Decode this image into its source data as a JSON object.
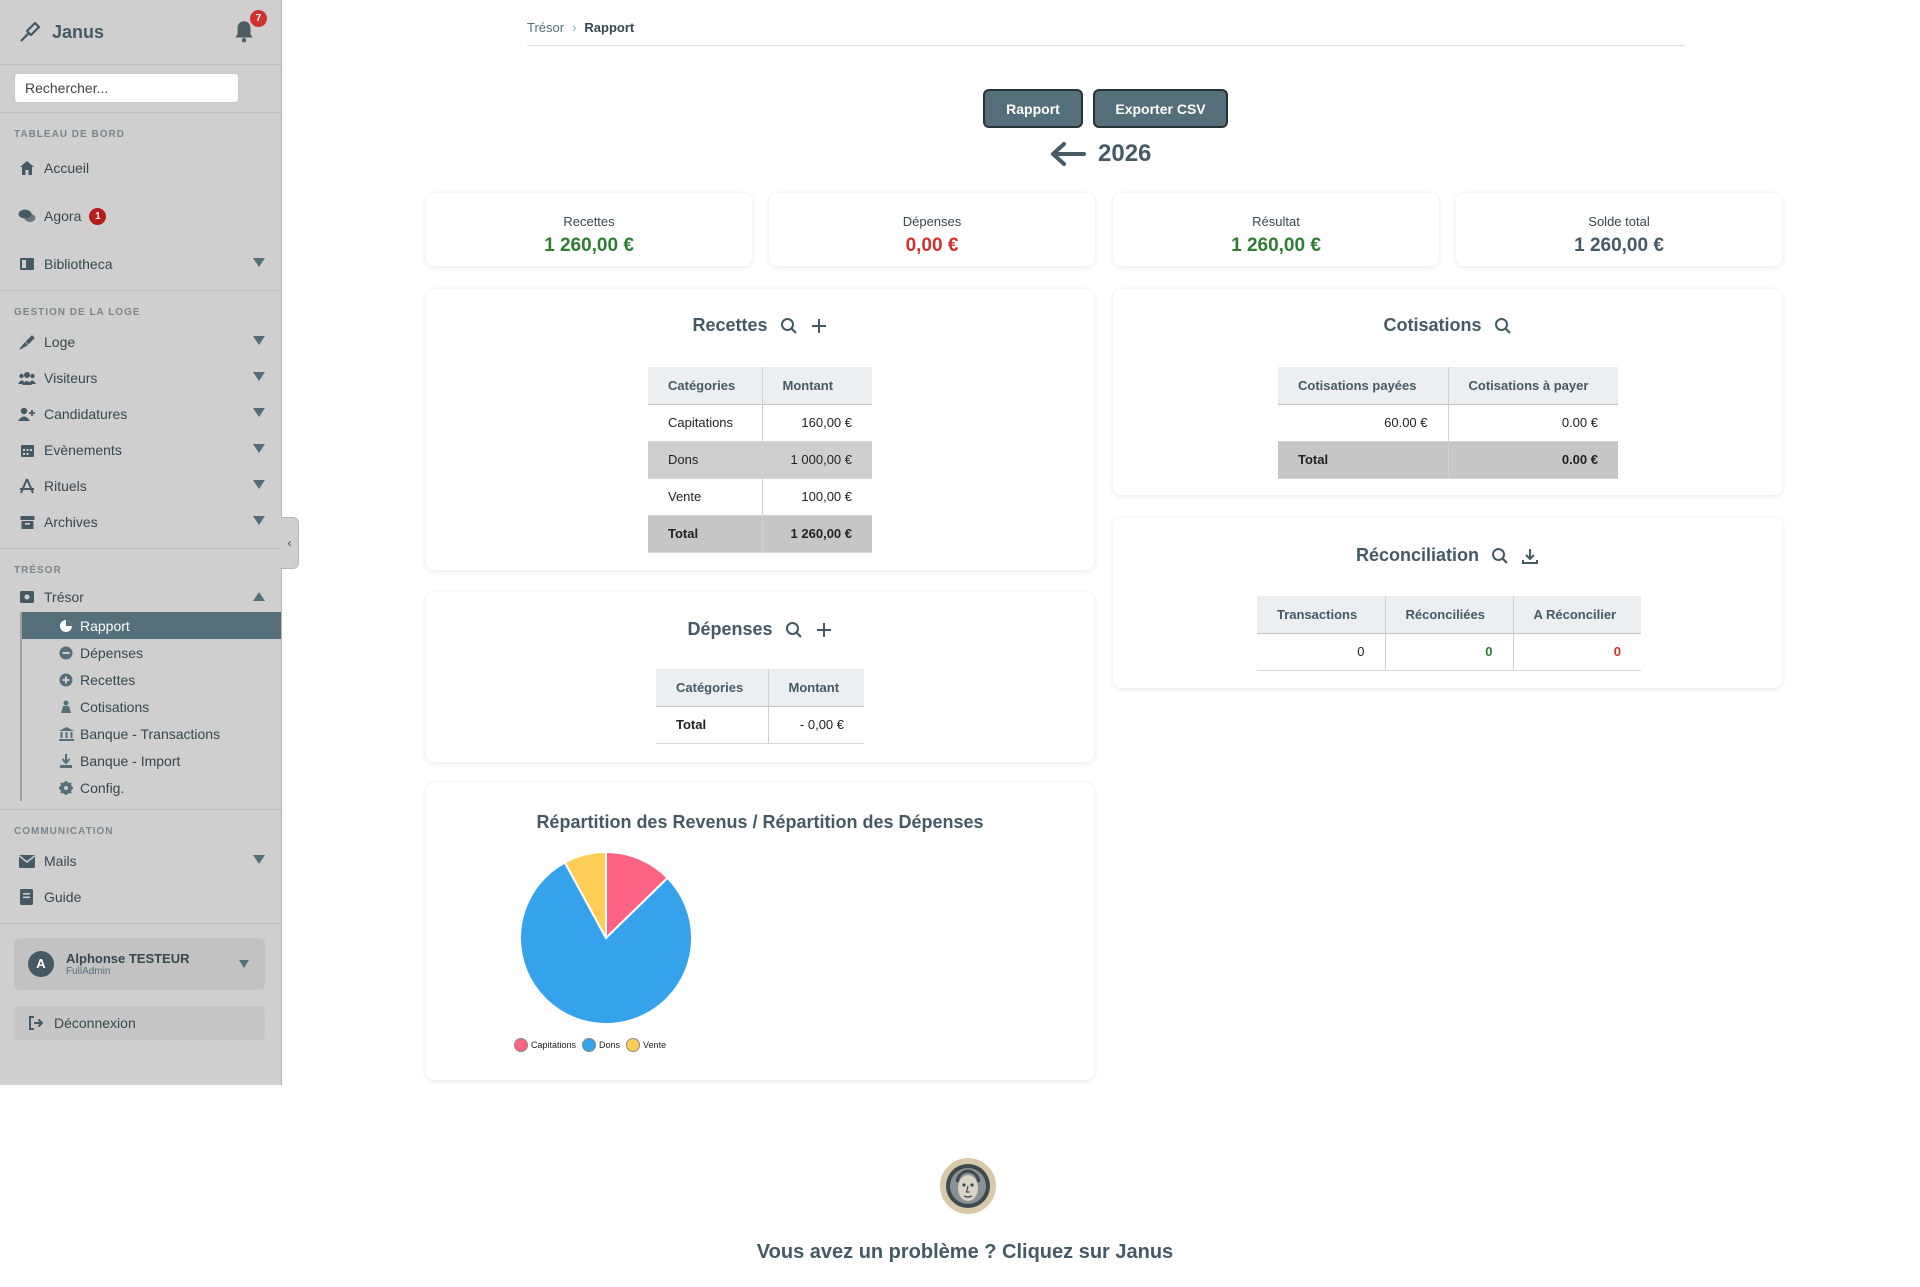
{
  "app": {
    "name": "Janus",
    "notifications": "7"
  },
  "search": {
    "placeholder": "Rechercher..."
  },
  "sidebar": {
    "sections": [
      {
        "title": "TABLEAU DE BORD",
        "items": [
          {
            "label": "Accueil",
            "icon": "home-icon"
          },
          {
            "label": "Agora",
            "icon": "comments-icon",
            "badge": "1"
          },
          {
            "label": "Bibliotheca",
            "icon": "book-icon"
          }
        ]
      },
      {
        "title": "GESTION DE LA LOGE",
        "items": [
          {
            "label": "Loge",
            "icon": "trowel-icon"
          },
          {
            "label": "Visiteurs",
            "icon": "users-icon"
          },
          {
            "label": "Candidatures",
            "icon": "user-plus-icon"
          },
          {
            "label": "Evènements",
            "icon": "calendar-icon"
          },
          {
            "label": "Rituels",
            "icon": "compass-icon"
          },
          {
            "label": "Archives",
            "icon": "archive-icon"
          }
        ]
      },
      {
        "title": "TRÉSOR",
        "items": [
          {
            "label": "Trésor",
            "icon": "money-icon"
          }
        ]
      },
      {
        "title": "COMMUNICATION",
        "items": [
          {
            "label": "Mails",
            "icon": "envelope-icon"
          },
          {
            "label": "Guide",
            "icon": "book-open-icon"
          }
        ]
      }
    ],
    "tresor_sub": [
      {
        "label": "Rapport",
        "icon": "chart-pie-icon"
      },
      {
        "label": "Dépenses",
        "icon": "minus-circle-icon"
      },
      {
        "label": "Recettes",
        "icon": "plus-circle-icon"
      },
      {
        "label": "Cotisations",
        "icon": "hand-coins-icon"
      },
      {
        "label": "Banque - Transactions",
        "icon": "bank-icon"
      },
      {
        "label": "Banque - Import",
        "icon": "download-icon"
      },
      {
        "label": "Config.",
        "icon": "gear-icon"
      }
    ],
    "user": {
      "initial": "A",
      "name": "Alphonse TESTEUR",
      "role": "FullAdmin"
    },
    "logout": "Déconnexion"
  },
  "breadcrumb": {
    "parent": "Trésor",
    "current": "Rapport"
  },
  "actions": {
    "report": "Rapport",
    "export": "Exporter CSV"
  },
  "year": "2026",
  "stats": [
    {
      "label": "Recettes",
      "value": "1 260,00 €",
      "color": "#2e7d32"
    },
    {
      "label": "Dépenses",
      "value": "0,00 €",
      "color": "#d32f2f"
    },
    {
      "label": "Résultat",
      "value": "1 260,00 €",
      "color": "#2e7d32"
    },
    {
      "label": "Solde total",
      "value": "1 260,00 €",
      "color": "#455a64"
    }
  ],
  "recettes": {
    "title": "Recettes",
    "headers": [
      "Catégories",
      "Montant"
    ],
    "rows": [
      [
        "Capitations",
        "160,00 €"
      ],
      [
        "Dons",
        "1 000,00 €"
      ],
      [
        "Vente",
        "100,00 €"
      ]
    ],
    "total": [
      "Total",
      "1 260,00 €"
    ]
  },
  "depenses": {
    "title": "Dépenses",
    "headers": [
      "Catégories",
      "Montant"
    ],
    "total": [
      "Total",
      "- 0,00 €"
    ]
  },
  "cotisations": {
    "title": "Cotisations",
    "headers": [
      "Cotisations payées",
      "Cotisations à payer"
    ],
    "row": [
      "60.00 €",
      "0.00 €"
    ],
    "total": [
      "Total",
      "0.00 €"
    ]
  },
  "reconciliation": {
    "title": "Réconciliation",
    "headers": [
      "Transactions",
      "Réconciliées",
      "A Réconcilier"
    ],
    "row": [
      "0",
      "0",
      "0"
    ]
  },
  "chart_data": {
    "type": "pie",
    "title": "Répartition des Revenus / Répartition des Dépenses",
    "categories": [
      "Capitations",
      "Dons",
      "Vente"
    ],
    "values": [
      160,
      1000,
      100
    ],
    "colors": [
      "#ff6384",
      "#36a2eb",
      "#ffcd56"
    ],
    "legend": "bottom"
  },
  "footer": {
    "text": "Vous avez un problème ? Cliquez sur Janus"
  }
}
